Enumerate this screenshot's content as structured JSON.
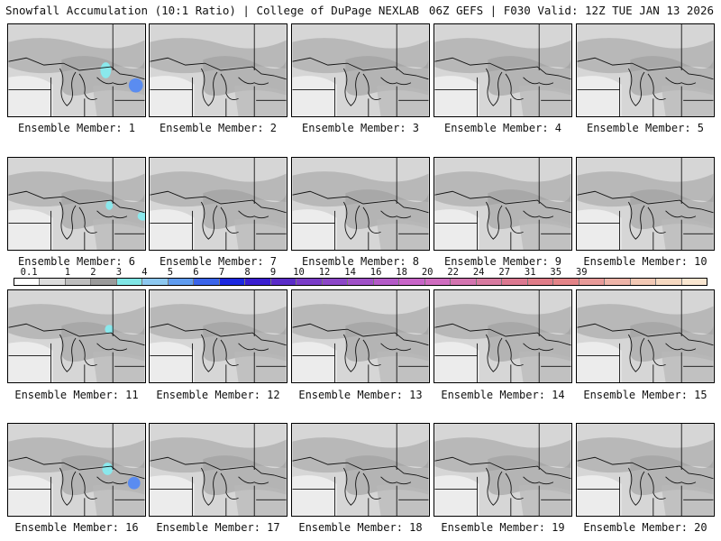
{
  "header": {
    "title_left": "Snowfall Accumulation (10:1 Ratio) | College of DuPage NEXLAB",
    "title_right": "06Z GEFS | F030 Valid: 12Z TUE JAN 13 2026"
  },
  "members": [
    "Ensemble Member: 1",
    "Ensemble Member: 2",
    "Ensemble Member: 3",
    "Ensemble Member: 4",
    "Ensemble Member: 5",
    "Ensemble Member: 6",
    "Ensemble Member: 7",
    "Ensemble Member: 8",
    "Ensemble Member: 9",
    "Ensemble Member: 10",
    "Ensemble Member: 11",
    "Ensemble Member: 12",
    "Ensemble Member: 13",
    "Ensemble Member: 14",
    "Ensemble Member: 15",
    "Ensemble Member: 16",
    "Ensemble Member: 17",
    "Ensemble Member: 18",
    "Ensemble Member: 19",
    "Ensemble Member: 20"
  ],
  "legend": {
    "labels": [
      "0.1",
      "1",
      "2",
      "3",
      "4",
      "5",
      "6",
      "7",
      "8",
      "9",
      "10",
      "12",
      "14",
      "16",
      "18",
      "20",
      "22",
      "24",
      "27",
      "31",
      "35",
      "39"
    ],
    "colors": [
      "#ffffff",
      "#dcdcdc",
      "#bdbdbd",
      "#9a9a9a",
      "#7fe6e6",
      "#8cc8f0",
      "#5f9cf0",
      "#3a64ea",
      "#1c28e0",
      "#3a1ed0",
      "#5a2cc8",
      "#7a3cc8",
      "#8c46c8",
      "#a050c8",
      "#b45ac8",
      "#c864c8",
      "#d06cc0",
      "#d474b0",
      "#d87aa0",
      "#dc7890",
      "#e07c88",
      "#e48488",
      "#e89a98",
      "#eeb4a8",
      "#f2c8b4",
      "#f6d8c0",
      "#fae6d0"
    ]
  },
  "palette": {
    "gray_light": "#d6d6d6",
    "gray_mid": "#b8b8b8",
    "gray_dark": "#9c9c9c",
    "cyan": "#8ae8ec",
    "blue": "#5a8cf0",
    "blue_deep": "#2c48e6"
  }
}
